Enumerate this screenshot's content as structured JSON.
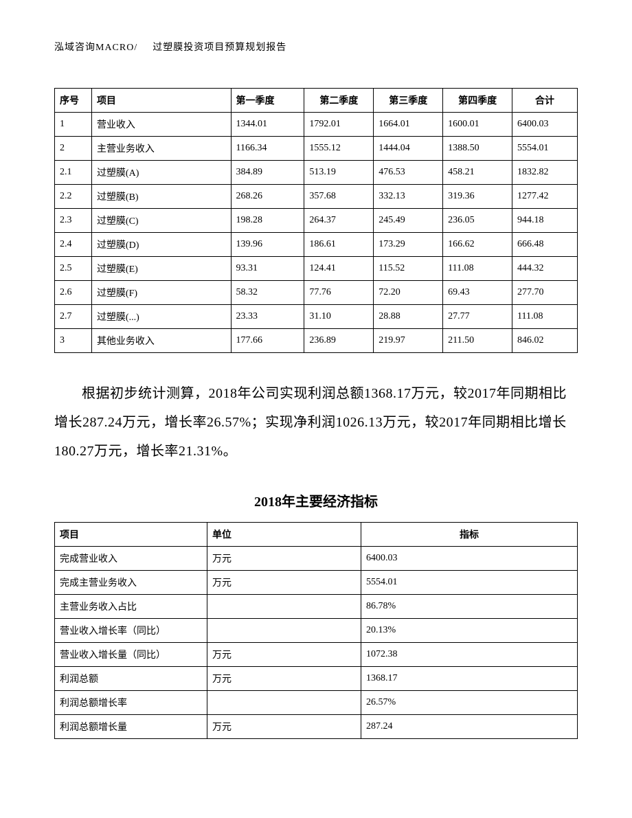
{
  "header": {
    "left": "泓域咨询MACRO/",
    "right": "过塑膜投资项目预算规划报告"
  },
  "table1": {
    "headers": [
      "序号",
      "项目",
      "第一季度",
      "第二季度",
      "第三季度",
      "第四季度",
      "合计"
    ],
    "rows": [
      [
        "1",
        "营业收入",
        "1344.01",
        "1792.01",
        "1664.01",
        "1600.01",
        "6400.03"
      ],
      [
        "2",
        "主营业务收入",
        "1166.34",
        "1555.12",
        "1444.04",
        "1388.50",
        "5554.01"
      ],
      [
        "2.1",
        "过塑膜(A)",
        "384.89",
        "513.19",
        "476.53",
        "458.21",
        "1832.82"
      ],
      [
        "2.2",
        "过塑膜(B)",
        "268.26",
        "357.68",
        "332.13",
        "319.36",
        "1277.42"
      ],
      [
        "2.3",
        "过塑膜(C)",
        "198.28",
        "264.37",
        "245.49",
        "236.05",
        "944.18"
      ],
      [
        "2.4",
        "过塑膜(D)",
        "139.96",
        "186.61",
        "173.29",
        "166.62",
        "666.48"
      ],
      [
        "2.5",
        "过塑膜(E)",
        "93.31",
        "124.41",
        "115.52",
        "111.08",
        "444.32"
      ],
      [
        "2.6",
        "过塑膜(F)",
        "58.32",
        "77.76",
        "72.20",
        "69.43",
        "277.70"
      ],
      [
        "2.7",
        "过塑膜(...)",
        "23.33",
        "31.10",
        "28.88",
        "27.77",
        "111.08"
      ],
      [
        "3",
        "其他业务收入",
        "177.66",
        "236.89",
        "219.97",
        "211.50",
        "846.02"
      ]
    ]
  },
  "paragraph": "根据初步统计测算，2018年公司实现利润总额1368.17万元，较2017年同期相比增长287.24万元，增长率26.57%；实现净利润1026.13万元，较2017年同期相比增长180.27万元，增长率21.31%。",
  "title2": "2018年主要经济指标",
  "table2": {
    "headers": [
      "项目",
      "单位",
      "指标"
    ],
    "rows": [
      [
        "完成营业收入",
        "万元",
        "6400.03"
      ],
      [
        "完成主营业务收入",
        "万元",
        "5554.01"
      ],
      [
        "主营业务收入占比",
        "",
        "86.78%"
      ],
      [
        "营业收入增长率（同比）",
        "",
        "20.13%"
      ],
      [
        "营业收入增长量（同比）",
        "万元",
        "1072.38"
      ],
      [
        "利润总额",
        "万元",
        "1368.17"
      ],
      [
        "利润总额增长率",
        "",
        "26.57%"
      ],
      [
        "利润总额增长量",
        "万元",
        "287.24"
      ]
    ]
  }
}
